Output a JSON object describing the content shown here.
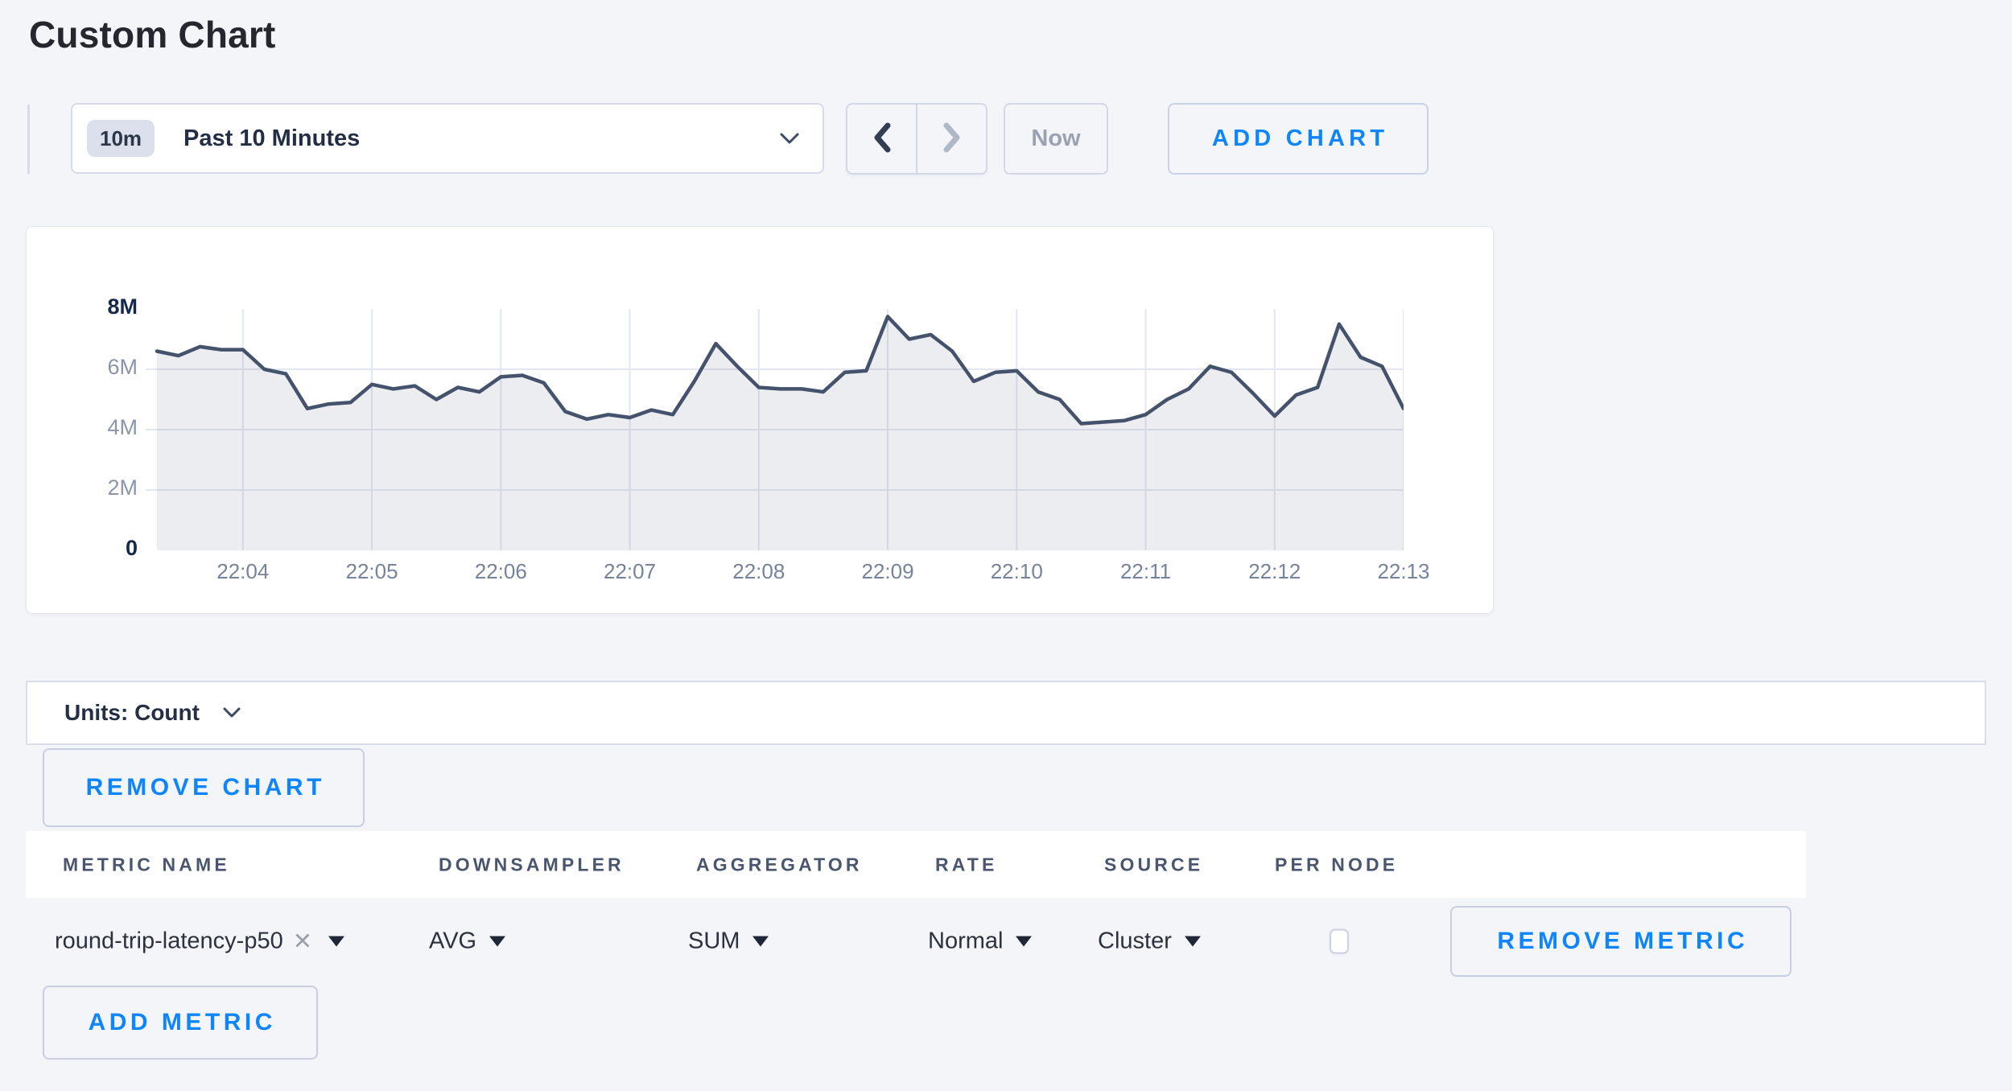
{
  "page": {
    "title": "Custom Chart"
  },
  "colors": {
    "accent_blue": "#0f85fb",
    "page_bg": "#f4f5f9",
    "line": "#45526c",
    "fill": "rgba(69,82,108,0.10)",
    "grid": "#e3e7f0",
    "axis_end_label": "#16294a",
    "axis_mid_label": "#8b95aa",
    "x_label": "#76839b"
  },
  "toolbar": {
    "time_range_badge": "10m",
    "time_range_label": "Past 10 Minutes",
    "now_label": "Now",
    "add_chart_label": "ADD CHART"
  },
  "chart_data": {
    "type": "area",
    "title": "",
    "xlabel": "",
    "ylabel": "count",
    "x_start": "22:03:20",
    "x_interval_seconds": 10,
    "x_ticks": [
      "22:04",
      "22:05",
      "22:06",
      "22:07",
      "22:08",
      "22:09",
      "22:10",
      "22:11",
      "22:12",
      "22:13"
    ],
    "y_ticks": [
      "0",
      "2M",
      "4M",
      "6M",
      "8M"
    ],
    "ylim": [
      0,
      8000000
    ],
    "grid": true,
    "legend_position": "none",
    "series": [
      {
        "name": "round-trip-latency-p50",
        "values_millions": [
          6.6,
          6.45,
          6.75,
          6.65,
          6.65,
          6.0,
          5.85,
          4.7,
          4.85,
          4.9,
          5.5,
          5.35,
          5.45,
          5.0,
          5.4,
          5.25,
          5.75,
          5.8,
          5.55,
          4.6,
          4.35,
          4.5,
          4.4,
          4.65,
          4.5,
          5.6,
          6.85,
          6.1,
          5.4,
          5.35,
          5.35,
          5.25,
          5.9,
          5.95,
          7.75,
          7.0,
          7.15,
          6.6,
          5.6,
          5.9,
          5.95,
          5.25,
          5.0,
          4.2,
          4.25,
          4.3,
          4.5,
          5.0,
          5.35,
          6.1,
          5.9,
          5.2,
          4.45,
          5.15,
          5.4,
          7.5,
          6.4,
          6.1,
          4.7
        ]
      }
    ]
  },
  "units_bar": {
    "label": "Units: Count"
  },
  "chart_actions": {
    "remove_chart_label": "REMOVE CHART"
  },
  "metrics_table": {
    "columns": [
      "METRIC NAME",
      "DOWNSAMPLER",
      "AGGREGATOR",
      "RATE",
      "SOURCE",
      "PER NODE"
    ],
    "rows": [
      {
        "metric_name": "round-trip-latency-p50",
        "clear_icon": "x",
        "downsampler": "AVG",
        "aggregator": "SUM",
        "rate": "Normal",
        "source": "Cluster",
        "per_node_checked": false,
        "remove_label": "REMOVE METRIC"
      }
    ],
    "add_metric_label": "ADD METRIC"
  }
}
